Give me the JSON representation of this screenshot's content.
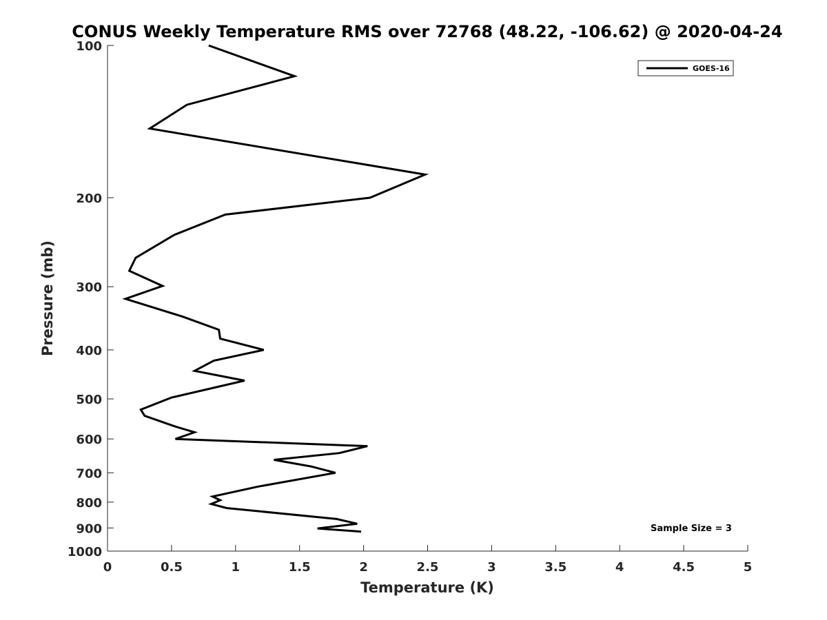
{
  "chart_data": {
    "type": "line",
    "title": "CONUS Weekly Temperature RMS over 72768 (48.22, -106.62) @ 2020-04-24",
    "xlabel": "Temperature (K)",
    "ylabel": "Pressure (mb)",
    "xlim": [
      0,
      5
    ],
    "ylim": [
      100,
      1000
    ],
    "y_scale": "log",
    "y_reversed": true,
    "x_ticks": [
      "0",
      "0.5",
      "1",
      "1.5",
      "2",
      "2.5",
      "3",
      "3.5",
      "4",
      "4.5",
      "5"
    ],
    "y_ticks": [
      "100",
      "200",
      "300",
      "400",
      "500",
      "600",
      "700",
      "800",
      "900",
      "1000"
    ],
    "grid": false,
    "legend_position": "top-right",
    "annotation": "Sample Size = 3",
    "series": [
      {
        "name": "GOES-16",
        "color": "#000000",
        "points": [
          [
            0.79,
            100
          ],
          [
            1.46,
            115
          ],
          [
            0.62,
            131
          ],
          [
            0.33,
            146
          ],
          [
            2.48,
            180
          ],
          [
            2.05,
            200
          ],
          [
            0.92,
            216
          ],
          [
            0.52,
            237
          ],
          [
            0.22,
            263
          ],
          [
            0.17,
            279
          ],
          [
            0.43,
            299
          ],
          [
            0.14,
            317
          ],
          [
            0.59,
            344
          ],
          [
            0.87,
            365
          ],
          [
            0.88,
            380
          ],
          [
            1.22,
            400
          ],
          [
            0.83,
            420
          ],
          [
            0.68,
            440
          ],
          [
            1.07,
            460
          ],
          [
            0.5,
            497
          ],
          [
            0.26,
            525
          ],
          [
            0.29,
            540
          ],
          [
            0.52,
            566
          ],
          [
            0.68,
            582
          ],
          [
            0.53,
            600
          ],
          [
            2.03,
            620
          ],
          [
            1.81,
            640
          ],
          [
            1.3,
            660
          ],
          [
            1.59,
            680
          ],
          [
            1.78,
            700
          ],
          [
            1.18,
            745
          ],
          [
            0.82,
            780
          ],
          [
            0.88,
            793
          ],
          [
            0.81,
            807
          ],
          [
            0.93,
            822
          ],
          [
            1.79,
            864
          ],
          [
            1.95,
            883
          ],
          [
            1.64,
            902
          ],
          [
            1.98,
            915
          ]
        ]
      }
    ]
  }
}
